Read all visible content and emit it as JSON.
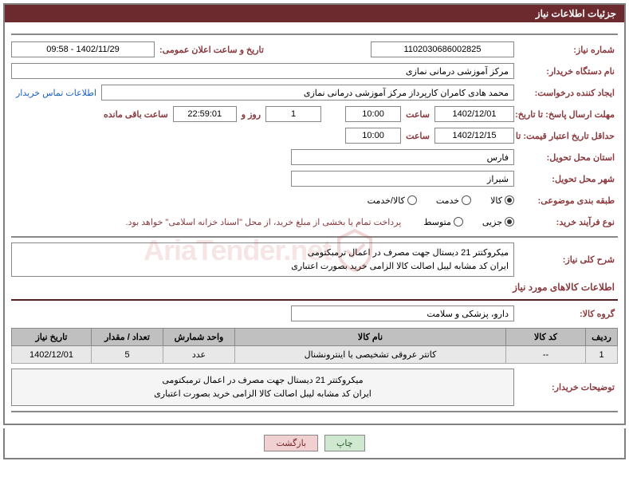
{
  "header": {
    "title": "جزئیات اطلاعات نیاز"
  },
  "fields": {
    "need_number_label": "شماره نیاز:",
    "need_number": "1102030686002825",
    "announce_label": "تاریخ و ساعت اعلان عمومی:",
    "announce": "1402/11/29 - 09:58",
    "buyer_org_label": "نام دستگاه خریدار:",
    "buyer_org": "مرکز آموزشی درمانی نمازی",
    "requester_label": "ایجاد کننده درخواست:",
    "requester": "محمد هادی کامران کارپرداز مرکز آموزشی درمانی نمازی",
    "contact_link": "اطلاعات تماس خریدار",
    "resp_deadline_label": "مهلت ارسال پاسخ: تا تاریخ:",
    "resp_date": "1402/12/01",
    "time_label": "ساعت",
    "resp_time": "10:00",
    "days": "1",
    "days_label": "روز و",
    "remaining_time": "22:59:01",
    "remaining_label": "ساعت باقی مانده",
    "min_validity_label": "حداقل تاریخ اعتبار قیمت: تا تاریخ:",
    "min_validity_date": "1402/12/15",
    "min_validity_time": "10:00",
    "province_label": "استان محل تحویل:",
    "province": "فارس",
    "city_label": "شهر محل تحویل:",
    "city": "شیراز",
    "category_label": "طبقه بندی موضوعی:",
    "cat_goods": "کالا",
    "cat_service": "خدمت",
    "cat_both": "کالا/خدمت",
    "purchase_type_label": "نوع فرآیند خرید:",
    "pt_small": "جزیی",
    "pt_medium": "متوسط",
    "purchase_note": "پرداخت تمام یا بخشی از مبلغ خرید، از محل \"اسناد خزانه اسلامی\" خواهد بود.",
    "summary_label": "شرح کلی نیاز:",
    "summary_l1": "میکروکتتر 21 دیستال جهت مصرف در اعمال ترمبکتومی",
    "summary_l2": "ایران کد مشابه لیبل اصالت کالا الزامی  خرید بصورت اعتباری",
    "items_section": "اطلاعات کالاهای مورد نیاز",
    "goods_group_label": "گروه کالا:",
    "goods_group": "دارو، پزشکی و سلامت",
    "buyer_notes_label": "توضیحات خریدار:",
    "notes_l1": "میکروکتتر 21 دیستال جهت مصرف در اعمال ترمبکتومی",
    "notes_l2": "ایران کد مشابه لیبل اصالت کالا الزامی  خرید بصورت اعتباری"
  },
  "table": {
    "headers": {
      "row": "ردیف",
      "code": "کد کالا",
      "name": "نام کالا",
      "unit": "واحد شمارش",
      "qty": "تعداد / مقدار",
      "date": "تاریخ نیاز"
    },
    "rows": [
      {
        "row": "1",
        "code": "--",
        "name": "کاتتر عروقی تشخیصی یا اینترونشنال",
        "unit": "عدد",
        "qty": "5",
        "date": "1402/12/01"
      }
    ]
  },
  "buttons": {
    "print": "چاپ",
    "return": "بازگشت"
  },
  "watermark": "AriaTender.net"
}
